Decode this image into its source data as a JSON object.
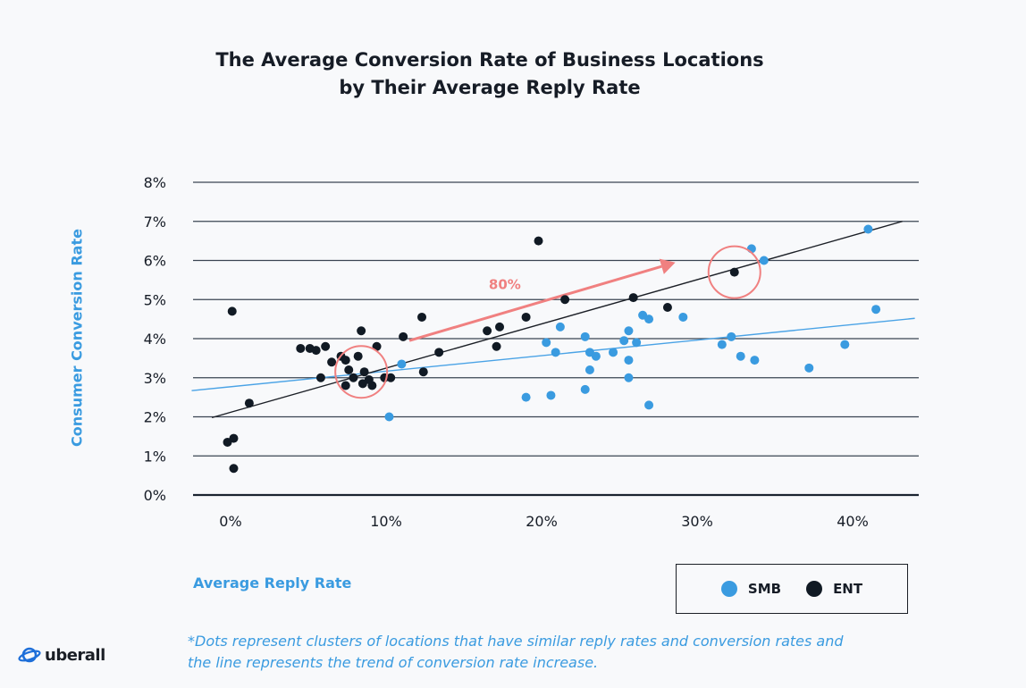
{
  "chart_data": {
    "type": "scatter",
    "title": [
      "The Average Conversion Rate of Business Locations",
      "by Their Average Reply Rate"
    ],
    "xlabel": "Average Reply Rate",
    "ylabel": "Consumer Conversion Rate",
    "xlim": [
      -2.5,
      44
    ],
    "ylim": [
      0,
      8
    ],
    "x_ticks": [
      0,
      10,
      20,
      30,
      40
    ],
    "x_tick_labels": [
      "0%",
      "10%",
      "20%",
      "30%",
      "40%"
    ],
    "y_ticks": [
      0,
      1,
      2,
      3,
      4,
      5,
      6,
      7,
      8
    ],
    "y_tick_labels": [
      "0%",
      "1%",
      "2%",
      "3%",
      "4%",
      "5%",
      "6%",
      "7%",
      "8%"
    ],
    "grid": "horizontal",
    "legend_position": "bottom-right",
    "colors": {
      "SMB": "#3a9be0",
      "ENT": "#111a24",
      "annotation": "#f08080"
    },
    "series": [
      {
        "name": "SMB",
        "color": "#3a9be0",
        "points": [
          [
            10.2,
            2.0
          ],
          [
            11.0,
            3.35
          ],
          [
            19.0,
            2.5
          ],
          [
            20.3,
            3.9
          ],
          [
            20.6,
            2.55
          ],
          [
            20.9,
            3.65
          ],
          [
            21.2,
            4.3
          ],
          [
            22.8,
            4.05
          ],
          [
            22.8,
            2.7
          ],
          [
            23.1,
            3.65
          ],
          [
            23.1,
            3.2
          ],
          [
            23.5,
            3.55
          ],
          [
            24.6,
            3.65
          ],
          [
            25.3,
            3.95
          ],
          [
            25.6,
            4.2
          ],
          [
            25.6,
            3.45
          ],
          [
            25.6,
            3.0
          ],
          [
            26.1,
            3.9
          ],
          [
            26.5,
            4.6
          ],
          [
            26.9,
            4.5
          ],
          [
            26.9,
            2.3
          ],
          [
            29.1,
            4.55
          ],
          [
            31.6,
            3.85
          ],
          [
            32.2,
            4.05
          ],
          [
            32.8,
            3.55
          ],
          [
            33.5,
            6.3
          ],
          [
            33.7,
            3.45
          ],
          [
            34.3,
            6.0
          ],
          [
            37.2,
            3.25
          ],
          [
            39.5,
            3.85
          ],
          [
            41.0,
            6.8
          ],
          [
            41.5,
            4.75
          ]
        ],
        "trend": [
          [
            -2.5,
            2.67
          ],
          [
            44,
            4.52
          ]
        ]
      },
      {
        "name": "ENT",
        "color": "#111a24",
        "points": [
          [
            -0.2,
            1.35
          ],
          [
            0.2,
            1.45
          ],
          [
            0.2,
            0.68
          ],
          [
            0.1,
            4.7
          ],
          [
            1.2,
            2.35
          ],
          [
            4.5,
            3.75
          ],
          [
            5.1,
            3.75
          ],
          [
            5.5,
            3.7
          ],
          [
            6.1,
            3.8
          ],
          [
            5.8,
            3.0
          ],
          [
            6.5,
            3.4
          ],
          [
            7.1,
            3.55
          ],
          [
            7.4,
            3.45
          ],
          [
            7.6,
            3.2
          ],
          [
            7.4,
            2.8
          ],
          [
            7.9,
            3.0
          ],
          [
            8.2,
            3.55
          ],
          [
            8.4,
            4.2
          ],
          [
            8.6,
            3.15
          ],
          [
            8.9,
            2.95
          ],
          [
            9.1,
            2.8
          ],
          [
            9.4,
            3.8
          ],
          [
            9.9,
            3.0
          ],
          [
            10.3,
            3.0
          ],
          [
            8.5,
            2.85
          ],
          [
            11.1,
            4.05
          ],
          [
            12.3,
            4.55
          ],
          [
            12.4,
            3.15
          ],
          [
            13.4,
            3.65
          ],
          [
            16.5,
            4.2
          ],
          [
            17.1,
            3.8
          ],
          [
            17.3,
            4.3
          ],
          [
            19.0,
            4.55
          ],
          [
            19.8,
            6.5
          ],
          [
            21.5,
            5.0
          ],
          [
            25.9,
            5.05
          ],
          [
            28.1,
            4.8
          ],
          [
            32.4,
            5.7
          ]
        ],
        "trend": [
          [
            -1.2,
            1.98
          ],
          [
            43.2,
            7.0
          ]
        ]
      }
    ],
    "annotations": [
      {
        "type": "circle",
        "x": 8.4,
        "y": 3.15,
        "color": "#f08080"
      },
      {
        "type": "circle",
        "x": 32.4,
        "y": 5.7,
        "color": "#f08080"
      },
      {
        "type": "arrow",
        "from": [
          11.5,
          3.95
        ],
        "to": [
          28.6,
          5.95
        ],
        "label": "80%",
        "color": "#f08080"
      }
    ]
  },
  "legend": {
    "smb_label": "SMB",
    "ent_label": "ENT"
  },
  "footnote": "*Dots represent clusters of locations that have similar reply rates and conversion rates  and the line represents the trend of conversion rate increase.",
  "logo": {
    "text": "uberall",
    "icon": "uberall-logo-icon"
  }
}
